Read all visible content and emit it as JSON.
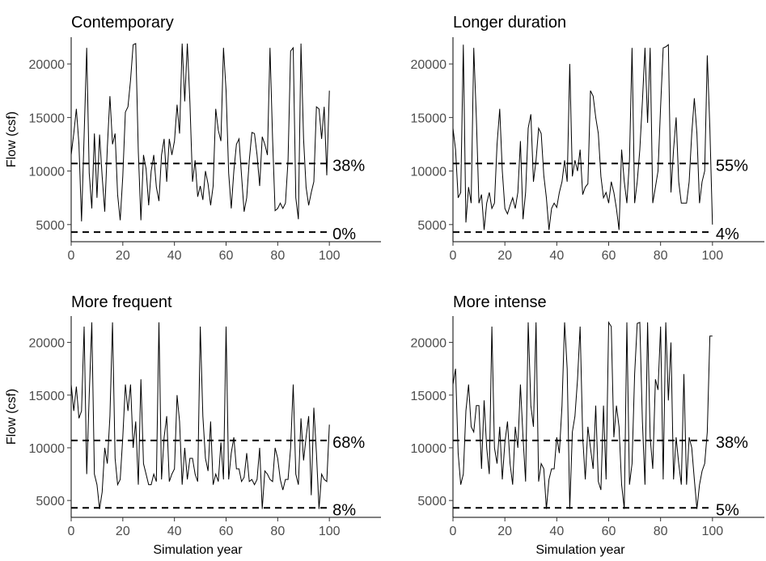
{
  "chart_data": [
    {
      "type": "line",
      "title": "Contemporary",
      "xlabel": "",
      "ylabel": "Flow (csf)",
      "xlim": [
        0,
        120
      ],
      "ylim": [
        3400,
        22500
      ],
      "xticks": [
        0,
        20,
        40,
        60,
        80,
        100
      ],
      "yticks": [
        5000,
        10000,
        15000,
        20000
      ],
      "reference_lines": [
        {
          "y": 10700,
          "label": "38%"
        },
        {
          "y": 4300,
          "label": "0%"
        }
      ],
      "x": [
        0,
        1,
        2,
        3,
        4,
        5,
        6,
        7,
        8,
        9,
        10,
        11,
        12,
        13,
        14,
        15,
        16,
        17,
        18,
        19,
        20,
        21,
        22,
        23,
        24,
        25,
        26,
        27,
        28,
        29,
        30,
        31,
        32,
        33,
        34,
        35,
        36,
        37,
        38,
        39,
        40,
        41,
        42,
        43,
        44,
        45,
        46,
        47,
        48,
        49,
        50,
        51,
        52,
        53,
        54,
        55,
        56,
        57,
        58,
        59,
        60,
        61,
        62,
        63,
        64,
        65,
        66,
        67,
        68,
        69,
        70,
        71,
        72,
        73,
        74,
        75,
        76,
        77,
        78,
        79,
        80,
        81,
        82,
        83,
        84,
        85,
        86,
        87,
        88,
        89,
        90,
        91,
        92,
        93,
        94,
        95,
        96,
        97,
        98,
        99,
        100
      ],
      "values": [
        11500,
        13500,
        15800,
        12500,
        5300,
        13300,
        21500,
        9800,
        6500,
        13500,
        7500,
        13400,
        9500,
        6200,
        12200,
        17000,
        12500,
        13500,
        7800,
        5400,
        9500,
        15500,
        16000,
        18500,
        21800,
        21900,
        11800,
        5400,
        11500,
        10200,
        6800,
        10000,
        11500,
        8500,
        7200,
        11500,
        13000,
        9000,
        13000,
        11500,
        12800,
        16200,
        13500,
        21900,
        16500,
        21900,
        16400,
        9000,
        11000,
        7600,
        8600,
        7300,
        10000,
        8800,
        6800,
        8600,
        15800,
        13800,
        12800,
        21500,
        17500,
        9800,
        6500,
        10000,
        12500,
        13000,
        9600,
        6200,
        7500,
        11000,
        13600,
        13500,
        11500,
        8600,
        13200,
        12500,
        11500,
        21500,
        13000,
        6300,
        6500,
        7000,
        6500,
        7000,
        11000,
        21200,
        21500,
        7500,
        5500,
        21900,
        13000,
        8500,
        6800,
        8000,
        9000,
        16000,
        15800,
        13000,
        16000,
        9600,
        17500
      ]
    },
    {
      "type": "line",
      "title": "Longer duration",
      "xlabel": "",
      "ylabel": "",
      "xlim": [
        0,
        120
      ],
      "ylim": [
        3400,
        22500
      ],
      "xticks": [
        0,
        20,
        40,
        60,
        80,
        100
      ],
      "yticks": [
        5000,
        10000,
        15000,
        20000
      ],
      "reference_lines": [
        {
          "y": 10700,
          "label": "55%"
        },
        {
          "y": 4300,
          "label": "4%"
        }
      ],
      "x": [
        0,
        1,
        2,
        3,
        4,
        5,
        6,
        7,
        8,
        9,
        10,
        11,
        12,
        13,
        14,
        15,
        16,
        17,
        18,
        19,
        20,
        21,
        22,
        23,
        24,
        25,
        26,
        27,
        28,
        29,
        30,
        31,
        32,
        33,
        34,
        35,
        36,
        37,
        38,
        39,
        40,
        41,
        42,
        43,
        44,
        45,
        46,
        47,
        48,
        49,
        50,
        51,
        52,
        53,
        54,
        55,
        56,
        57,
        58,
        59,
        60,
        61,
        62,
        63,
        64,
        65,
        66,
        67,
        68,
        69,
        70,
        71,
        72,
        73,
        74,
        75,
        76,
        77,
        78,
        79,
        80,
        81,
        82,
        83,
        84,
        85,
        86,
        87,
        88,
        89,
        90,
        91,
        92,
        93,
        94,
        95,
        96,
        97,
        98,
        99,
        100
      ],
      "values": [
        14000,
        12000,
        7500,
        8000,
        21800,
        5200,
        8500,
        7000,
        21500,
        15000,
        7000,
        7800,
        4500,
        7000,
        8000,
        6500,
        7000,
        12500,
        15800,
        10000,
        6500,
        6000,
        6800,
        7500,
        6500,
        8000,
        12800,
        5500,
        8000,
        14000,
        15300,
        9000,
        11000,
        14000,
        13500,
        9600,
        7500,
        4500,
        6500,
        7000,
        6600,
        8000,
        9000,
        11000,
        9000,
        20000,
        9500,
        11000,
        10000,
        12000,
        7800,
        8500,
        8800,
        17500,
        17000,
        15000,
        13500,
        9500,
        7500,
        8000,
        7000,
        9000,
        8000,
        6500,
        4500,
        12000,
        9000,
        7000,
        11000,
        21500,
        7000,
        9000,
        12000,
        16500,
        21500,
        14500,
        21500,
        7000,
        8500,
        10000,
        16000,
        21500,
        21600,
        21800,
        8000,
        12000,
        15000,
        9000,
        7000,
        7000,
        7000,
        9000,
        13500,
        16800,
        13500,
        7000,
        9000,
        10000,
        20800,
        14000,
        5000
      ]
    },
    {
      "type": "line",
      "title": "More frequent",
      "xlabel": "Simulation year",
      "ylabel": "Flow (csf)",
      "xlim": [
        0,
        120
      ],
      "ylim": [
        3400,
        22500
      ],
      "xticks": [
        0,
        20,
        40,
        60,
        80,
        100
      ],
      "yticks": [
        5000,
        10000,
        15000,
        20000
      ],
      "reference_lines": [
        {
          "y": 10700,
          "label": "68%"
        },
        {
          "y": 4300,
          "label": "8%"
        }
      ],
      "x": [
        0,
        1,
        2,
        3,
        4,
        5,
        6,
        7,
        8,
        9,
        10,
        11,
        12,
        13,
        14,
        15,
        16,
        17,
        18,
        19,
        20,
        21,
        22,
        23,
        24,
        25,
        26,
        27,
        28,
        29,
        30,
        31,
        32,
        33,
        34,
        35,
        36,
        37,
        38,
        39,
        40,
        41,
        42,
        43,
        44,
        45,
        46,
        47,
        48,
        49,
        50,
        51,
        52,
        53,
        54,
        55,
        56,
        57,
        58,
        59,
        60,
        61,
        62,
        63,
        64,
        65,
        66,
        67,
        68,
        69,
        70,
        71,
        72,
        73,
        74,
        75,
        76,
        77,
        78,
        79,
        80,
        81,
        82,
        83,
        84,
        85,
        86,
        87,
        88,
        89,
        90,
        91,
        92,
        93,
        94,
        95,
        96,
        97,
        98,
        99,
        100
      ],
      "values": [
        16000,
        13500,
        15800,
        12800,
        13500,
        21500,
        7500,
        15000,
        21900,
        7500,
        6500,
        4200,
        5800,
        10000,
        8500,
        13000,
        21900,
        9000,
        6500,
        7000,
        11000,
        16000,
        13500,
        16000,
        10000,
        12500,
        6500,
        16500,
        8500,
        7500,
        6500,
        6500,
        7500,
        6800,
        21900,
        7000,
        11000,
        13000,
        6800,
        7500,
        8000,
        15000,
        12500,
        6500,
        10000,
        7000,
        9000,
        9000,
        7500,
        6800,
        21500,
        13000,
        9000,
        7800,
        12500,
        6500,
        7500,
        6800,
        10500,
        7000,
        21500,
        7000,
        9500,
        11000,
        8000,
        8000,
        6800,
        7200,
        9500,
        6800,
        7000,
        6500,
        7000,
        10000,
        4200,
        7800,
        7500,
        7000,
        6800,
        10000,
        9000,
        7000,
        6000,
        7000,
        7000,
        10000,
        16000,
        7500,
        6500,
        12800,
        8800,
        11000,
        13000,
        5500,
        13800,
        9500,
        4200,
        7500,
        7000,
        6800,
        12200
      ]
    },
    {
      "type": "line",
      "title": "More intense",
      "xlabel": "Simulation year",
      "ylabel": "",
      "xlim": [
        0,
        120
      ],
      "ylim": [
        3400,
        22500
      ],
      "xticks": [
        0,
        20,
        40,
        60,
        80,
        100
      ],
      "yticks": [
        5000,
        10000,
        15000,
        20000
      ],
      "reference_lines": [
        {
          "y": 10700,
          "label": "38%"
        },
        {
          "y": 4300,
          "label": "5%"
        }
      ],
      "x": [
        0,
        1,
        2,
        3,
        4,
        5,
        6,
        7,
        8,
        9,
        10,
        11,
        12,
        13,
        14,
        15,
        16,
        17,
        18,
        19,
        20,
        21,
        22,
        23,
        24,
        25,
        26,
        27,
        28,
        29,
        30,
        31,
        32,
        33,
        34,
        35,
        36,
        37,
        38,
        39,
        40,
        41,
        42,
        43,
        44,
        45,
        46,
        47,
        48,
        49,
        50,
        51,
        52,
        53,
        54,
        55,
        56,
        57,
        58,
        59,
        60,
        61,
        62,
        63,
        64,
        65,
        66,
        67,
        68,
        69,
        70,
        71,
        72,
        73,
        74,
        75,
        76,
        77,
        78,
        79,
        80,
        81,
        82,
        83,
        84,
        85,
        86,
        87,
        88,
        89,
        90,
        91,
        92,
        93,
        94,
        95,
        96,
        97,
        98,
        99,
        100
      ],
      "values": [
        16000,
        17500,
        9500,
        6500,
        7500,
        13500,
        16000,
        12000,
        11500,
        14000,
        14000,
        8000,
        14500,
        10000,
        7500,
        21500,
        10000,
        8500,
        12000,
        7000,
        10500,
        12500,
        8500,
        6500,
        12000,
        10000,
        16000,
        11000,
        6800,
        21900,
        14000,
        12000,
        21900,
        6800,
        8500,
        8000,
        4200,
        7000,
        8000,
        8000,
        11000,
        9500,
        14000,
        21900,
        17500,
        4200,
        11500,
        13000,
        16500,
        21500,
        11000,
        7000,
        12000,
        10000,
        8000,
        14000,
        6800,
        6000,
        14000,
        7000,
        21900,
        21500,
        11000,
        14000,
        12000,
        6500,
        4200,
        21900,
        6500,
        8500,
        17000,
        21800,
        21900,
        12500,
        6500,
        21900,
        11000,
        8000,
        16500,
        15500,
        21500,
        7000,
        21900,
        14500,
        20000,
        7000,
        11000,
        8500,
        6500,
        17000,
        6500,
        11000,
        10000,
        7000,
        4200,
        6500,
        7800,
        8500,
        11500,
        20600,
        20600
      ]
    }
  ]
}
